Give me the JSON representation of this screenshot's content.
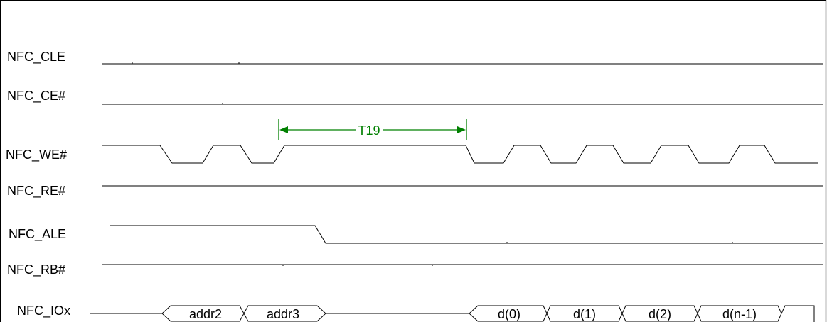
{
  "diagram": {
    "signals": [
      {
        "id": "cle",
        "label": "NFC_CLE"
      },
      {
        "id": "ce",
        "label": "NFC_CE#"
      },
      {
        "id": "we",
        "label": "NFC_WE#"
      },
      {
        "id": "re",
        "label": "NFC_RE#"
      },
      {
        "id": "ale",
        "label": "NFC_ALE"
      },
      {
        "id": "rb",
        "label": "NFC_RB#"
      },
      {
        "id": "io",
        "label": "NFC_IOx"
      }
    ],
    "io_values": [
      "addr2",
      "addr3",
      "d(0)",
      "d(1)",
      "d(2)",
      "d(n-1)"
    ],
    "timing": {
      "label": "T19"
    },
    "colors": {
      "line": "#000000",
      "annotation": "#008000"
    }
  }
}
